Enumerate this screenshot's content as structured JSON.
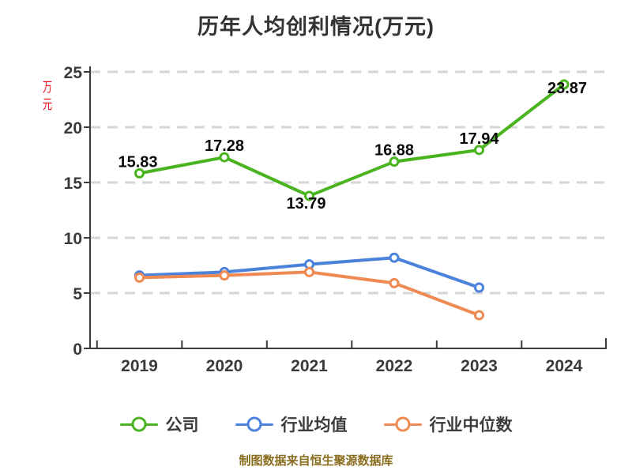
{
  "title": "历年人均创利情况(万元)",
  "y_axis_unit": "万元",
  "footer": "制图数据来自恒生聚源数据库",
  "chart_data": {
    "type": "line",
    "title": "历年人均创利情况(万元)",
    "unit_label": "万元",
    "unit_label_color": "#e8111c",
    "categories": [
      "2019",
      "2020",
      "2021",
      "2022",
      "2023",
      "2024"
    ],
    "series": [
      {
        "name": "公司",
        "color": "#49b41f",
        "values": [
          15.83,
          17.28,
          13.79,
          16.88,
          17.94,
          23.87
        ],
        "data_labels": true
      },
      {
        "name": "行业均值",
        "color": "#4b82dc",
        "values": [
          6.6,
          6.9,
          7.6,
          8.2,
          5.5
        ],
        "data_labels": false
      },
      {
        "name": "行业中位数",
        "color": "#f08a54",
        "values": [
          6.4,
          6.6,
          6.9,
          5.9,
          3.0
        ],
        "data_labels": false
      }
    ],
    "ylim": [
      0,
      25
    ],
    "yticks": [
      0,
      5,
      10,
      15,
      20,
      25
    ],
    "grid": "horizontal dashed",
    "grid_color": "#d6d6d6",
    "axis_color": "#3b3b3b",
    "tick_label_color": "#3a3a3a",
    "label_color": "#0a0a0a",
    "legend_position": "bottom",
    "footer": "制图数据来自恒生聚源数据库"
  }
}
